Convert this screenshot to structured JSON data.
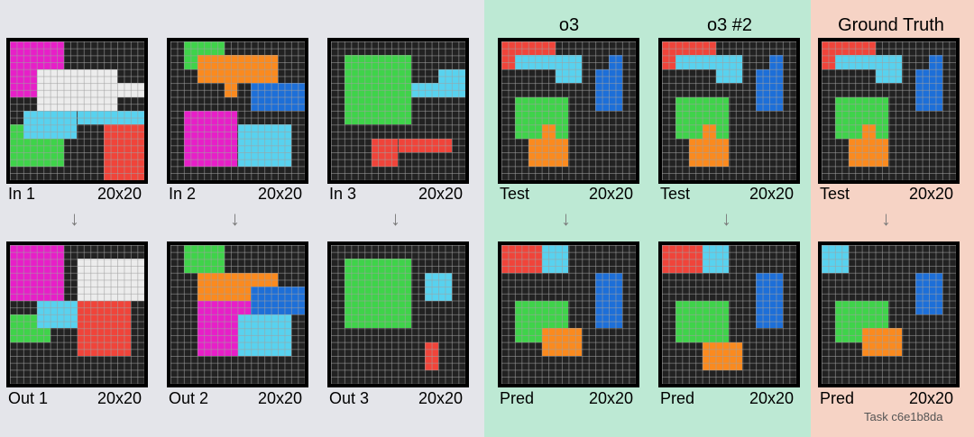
{
  "columns": [
    {
      "key": "in1"
    },
    {
      "key": "in2"
    },
    {
      "key": "in3"
    },
    {
      "key": "o3",
      "header": "o3"
    },
    {
      "key": "o3b",
      "header": "o3 #2"
    },
    {
      "key": "gt",
      "header": "Ground Truth"
    }
  ],
  "headers": {
    "o3": "o3",
    "o3b": "o3 #2",
    "gt": "Ground Truth"
  },
  "labels": {
    "in1": "In 1",
    "in2": "In 2",
    "in3": "In 3",
    "out1": "Out 1",
    "out2": "Out 2",
    "out3": "Out 3",
    "test": "Test",
    "pred": "Pred",
    "size": "20x20"
  },
  "task_id": "Task c6e1b8da",
  "colors": {
    "magenta": "#e71fc8",
    "white": "#ececec",
    "cyan": "#58d2ef",
    "green": "#3fd34a",
    "red": "#f0443a",
    "orange": "#fb8a1e",
    "blue": "#1d6fd8",
    "black": "#222222"
  },
  "grids": {
    "in1": [
      {
        "c": "magenta",
        "x": 0,
        "y": 0,
        "w": 4,
        "h": 4
      },
      {
        "c": "white",
        "x": 2,
        "y": 2,
        "w": 6,
        "h": 3
      },
      {
        "c": "white",
        "x": 8,
        "y": 3,
        "w": 2,
        "h": 1
      },
      {
        "c": "green",
        "x": 0,
        "y": 6,
        "w": 4,
        "h": 3
      },
      {
        "c": "cyan",
        "x": 1,
        "y": 5,
        "w": 4,
        "h": 2
      },
      {
        "c": "cyan",
        "x": 5,
        "y": 5,
        "w": 5,
        "h": 1
      },
      {
        "c": "red",
        "x": 7,
        "y": 6,
        "w": 4,
        "h": 4
      }
    ],
    "out1": [
      {
        "c": "magenta",
        "x": 0,
        "y": 0,
        "w": 4,
        "h": 4
      },
      {
        "c": "white",
        "x": 5,
        "y": 1,
        "w": 6,
        "h": 3
      },
      {
        "c": "green",
        "x": 0,
        "y": 5,
        "w": 3,
        "h": 2
      },
      {
        "c": "cyan",
        "x": 2,
        "y": 4,
        "w": 4,
        "h": 2
      },
      {
        "c": "red",
        "x": 5,
        "y": 4,
        "w": 4,
        "h": 4
      }
    ],
    "in2": [
      {
        "c": "green",
        "x": 1,
        "y": 0,
        "w": 3,
        "h": 2
      },
      {
        "c": "orange",
        "x": 2,
        "y": 1,
        "w": 6,
        "h": 2
      },
      {
        "c": "orange",
        "x": 4,
        "y": 3,
        "w": 1,
        "h": 1
      },
      {
        "c": "blue",
        "x": 6,
        "y": 3,
        "w": 4,
        "h": 2
      },
      {
        "c": "magenta",
        "x": 1,
        "y": 5,
        "w": 4,
        "h": 4
      },
      {
        "c": "magenta",
        "x": 5,
        "y": 6,
        "w": 1,
        "h": 1
      },
      {
        "c": "cyan",
        "x": 5,
        "y": 6,
        "w": 4,
        "h": 3
      }
    ],
    "out2": [
      {
        "c": "green",
        "x": 1,
        "y": 0,
        "w": 3,
        "h": 2
      },
      {
        "c": "orange",
        "x": 2,
        "y": 2,
        "w": 6,
        "h": 2
      },
      {
        "c": "blue",
        "x": 6,
        "y": 3,
        "w": 4,
        "h": 2
      },
      {
        "c": "magenta",
        "x": 2,
        "y": 4,
        "w": 4,
        "h": 4
      },
      {
        "c": "cyan",
        "x": 5,
        "y": 5,
        "w": 4,
        "h": 3
      }
    ],
    "in3": [
      {
        "c": "green",
        "x": 1,
        "y": 1,
        "w": 5,
        "h": 5
      },
      {
        "c": "cyan",
        "x": 6,
        "y": 3,
        "w": 4,
        "h": 1
      },
      {
        "c": "cyan",
        "x": 8,
        "y": 2,
        "w": 2,
        "h": 2
      },
      {
        "c": "red",
        "x": 3,
        "y": 7,
        "w": 2,
        "h": 2
      },
      {
        "c": "red",
        "x": 5,
        "y": 7,
        "w": 4,
        "h": 1
      }
    ],
    "out3": [
      {
        "c": "green",
        "x": 1,
        "y": 1,
        "w": 5,
        "h": 5
      },
      {
        "c": "cyan",
        "x": 7,
        "y": 2,
        "w": 2,
        "h": 2
      },
      {
        "c": "red",
        "x": 7,
        "y": 7,
        "w": 1,
        "h": 2
      }
    ],
    "test": [
      {
        "c": "red",
        "x": 0,
        "y": 0,
        "w": 4,
        "h": 2
      },
      {
        "c": "cyan",
        "x": 1,
        "y": 1,
        "w": 4,
        "h": 1
      },
      {
        "c": "cyan",
        "x": 4,
        "y": 1,
        "w": 2,
        "h": 2
      },
      {
        "c": "blue",
        "x": 7,
        "y": 2,
        "w": 2,
        "h": 3
      },
      {
        "c": "blue",
        "x": 8,
        "y": 1,
        "w": 1,
        "h": 1
      },
      {
        "c": "green",
        "x": 1,
        "y": 4,
        "w": 4,
        "h": 3
      },
      {
        "c": "orange",
        "x": 3,
        "y": 6,
        "w": 1,
        "h": 1
      },
      {
        "c": "orange",
        "x": 2,
        "y": 7,
        "w": 3,
        "h": 2
      }
    ],
    "pred_o3": [
      {
        "c": "red",
        "x": 0,
        "y": 0,
        "w": 3,
        "h": 2
      },
      {
        "c": "cyan",
        "x": 3,
        "y": 0,
        "w": 2,
        "h": 2
      },
      {
        "c": "blue",
        "x": 7,
        "y": 2,
        "w": 2,
        "h": 4
      },
      {
        "c": "green",
        "x": 1,
        "y": 4,
        "w": 4,
        "h": 3
      },
      {
        "c": "orange",
        "x": 3,
        "y": 6,
        "w": 3,
        "h": 2
      }
    ],
    "pred_o3b": [
      {
        "c": "red",
        "x": 0,
        "y": 0,
        "w": 3,
        "h": 2
      },
      {
        "c": "cyan",
        "x": 3,
        "y": 0,
        "w": 2,
        "h": 2
      },
      {
        "c": "blue",
        "x": 7,
        "y": 2,
        "w": 2,
        "h": 4
      },
      {
        "c": "green",
        "x": 1,
        "y": 4,
        "w": 4,
        "h": 3
      },
      {
        "c": "orange",
        "x": 3,
        "y": 7,
        "w": 3,
        "h": 2
      }
    ],
    "pred_gt": [
      {
        "c": "red",
        "x": 0,
        "y": 0,
        "w": 2,
        "h": 2
      },
      {
        "c": "cyan",
        "x": 0,
        "y": 0,
        "w": 2,
        "h": 2
      },
      {
        "c": "blue",
        "x": 7,
        "y": 2,
        "w": 2,
        "h": 3
      },
      {
        "c": "green",
        "x": 1,
        "y": 4,
        "w": 4,
        "h": 3
      },
      {
        "c": "orange",
        "x": 3,
        "y": 6,
        "w": 3,
        "h": 2
      }
    ]
  }
}
